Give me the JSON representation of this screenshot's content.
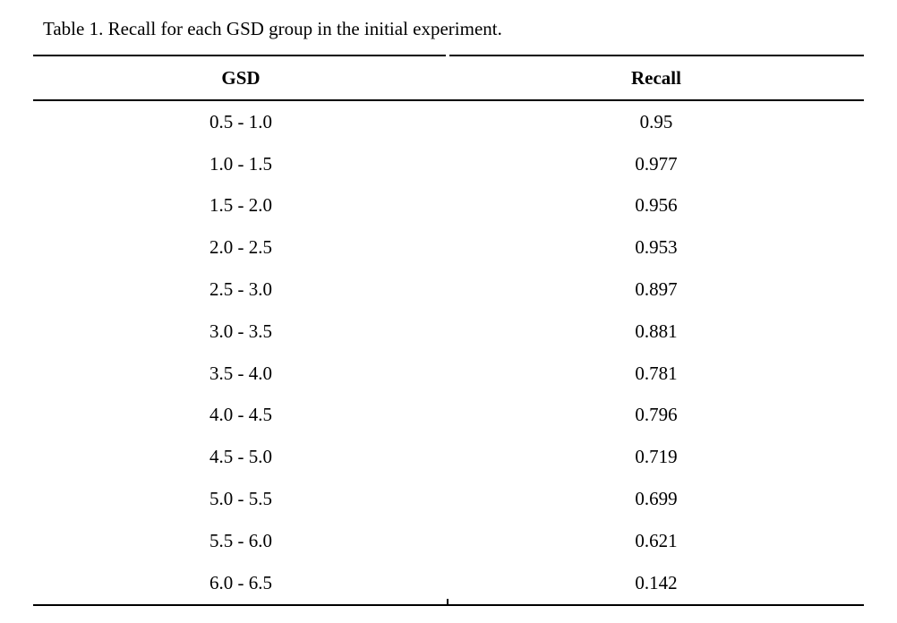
{
  "table": {
    "caption": "Table 1. Recall for each GSD group in the initial experiment.",
    "columns": [
      "GSD",
      "Recall"
    ],
    "rows": [
      [
        "0.5 - 1.0",
        "0.95"
      ],
      [
        "1.0 - 1.5",
        "0.977"
      ],
      [
        "1.5 - 2.0",
        "0.956"
      ],
      [
        "2.0 - 2.5",
        "0.953"
      ],
      [
        "2.5 - 3.0",
        "0.897"
      ],
      [
        "3.0 - 3.5",
        "0.881"
      ],
      [
        "3.5 - 4.0",
        "0.781"
      ],
      [
        "4.0 - 4.5",
        "0.796"
      ],
      [
        "4.5 - 5.0",
        "0.719"
      ],
      [
        "5.0 - 5.5",
        "0.699"
      ],
      [
        "5.5 - 6.0",
        "0.621"
      ],
      [
        "6.0 - 6.5",
        "0.142"
      ]
    ]
  },
  "colors": {
    "text": "#000000",
    "rule": "#000000",
    "background": "#ffffff"
  }
}
